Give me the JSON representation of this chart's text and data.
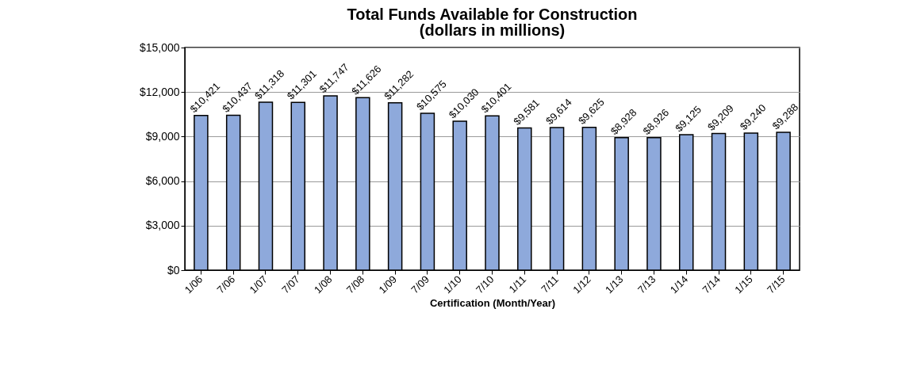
{
  "chart_data": {
    "type": "bar",
    "title": "Total Funds Available for Construction",
    "subtitle": "(dollars in millions)",
    "xlabel": "Certification (Month/Year)",
    "categories": [
      "1/06",
      "7/06",
      "1/07",
      "7/07",
      "1/08",
      "7/08",
      "1/09",
      "7/09",
      "1/10",
      "7/10",
      "1/11",
      "7/11",
      "1/12",
      "1/13",
      "7/13",
      "1/14",
      "7/14",
      "1/15",
      "7/15"
    ],
    "values": [
      10421,
      10437,
      11318,
      11301,
      11747,
      11626,
      11282,
      10575,
      10030,
      10401,
      9581,
      9614,
      9625,
      8928,
      8926,
      9125,
      9209,
      9240,
      9288
    ],
    "value_labels": [
      "$10,421",
      "$10,437",
      "$11,318",
      "$11,301",
      "$11,747",
      "$11,626",
      "$11,282",
      "$10,575",
      "$10,030",
      "$10,401",
      "$9,581",
      "$9,614",
      "$9,625",
      "$8,928",
      "$8,926",
      "$9,125",
      "$9,209",
      "$9,240",
      "$9,288"
    ],
    "color": "#8ea9db",
    "ylim": [
      0,
      15000
    ],
    "yticks": [
      {
        "value": 0,
        "label": "$0"
      },
      {
        "value": 3000,
        "label": "$3,000"
      },
      {
        "value": 6000,
        "label": "$6,000"
      },
      {
        "value": 9000,
        "label": "$9,000"
      },
      {
        "value": 12000,
        "label": "$12,000"
      },
      {
        "value": 15000,
        "label": "$15,000"
      }
    ],
    "grid": "y"
  }
}
